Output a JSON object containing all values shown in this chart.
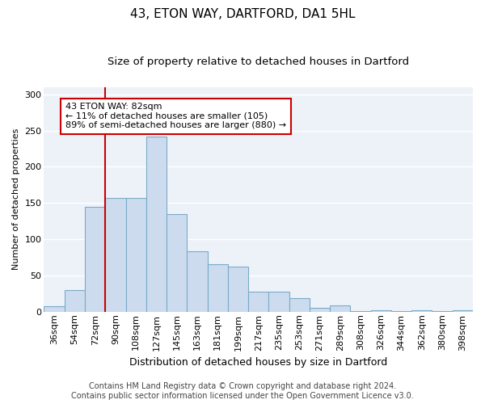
{
  "title1": "43, ETON WAY, DARTFORD, DA1 5HL",
  "title2": "Size of property relative to detached houses in Dartford",
  "xlabel": "Distribution of detached houses by size in Dartford",
  "ylabel": "Number of detached properties",
  "categories": [
    "36sqm",
    "54sqm",
    "72sqm",
    "90sqm",
    "108sqm",
    "127sqm",
    "145sqm",
    "163sqm",
    "181sqm",
    "199sqm",
    "217sqm",
    "235sqm",
    "253sqm",
    "271sqm",
    "289sqm",
    "308sqm",
    "326sqm",
    "344sqm",
    "362sqm",
    "380sqm",
    "398sqm"
  ],
  "values": [
    8,
    30,
    145,
    157,
    157,
    242,
    135,
    83,
    65,
    62,
    28,
    28,
    19,
    5,
    9,
    1,
    2,
    1,
    2,
    1,
    2
  ],
  "bar_color": "#ccdcee",
  "bar_edge_color": "#7aaac8",
  "vline_color": "#cc0000",
  "vline_idx": 3,
  "annotation_text": "43 ETON WAY: 82sqm\n← 11% of detached houses are smaller (105)\n89% of semi-detached houses are larger (880) →",
  "annotation_box_color": "white",
  "annotation_box_edge_color": "#cc0000",
  "ylim": [
    0,
    310
  ],
  "yticks": [
    0,
    50,
    100,
    150,
    200,
    250,
    300
  ],
  "background_color": "#edf2f9",
  "grid_color": "white",
  "footer1": "Contains HM Land Registry data © Crown copyright and database right 2024.",
  "footer2": "Contains public sector information licensed under the Open Government Licence v3.0.",
  "title1_fontsize": 11,
  "title2_fontsize": 9.5,
  "xlabel_fontsize": 9,
  "ylabel_fontsize": 8,
  "tick_fontsize": 8,
  "footer_fontsize": 7
}
